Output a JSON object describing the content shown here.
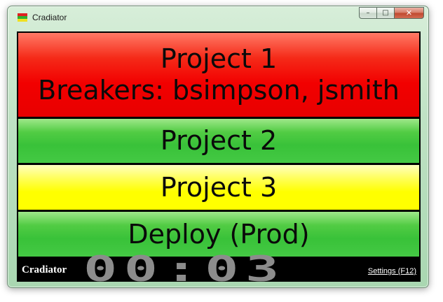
{
  "window": {
    "title": "Cradiator",
    "controls": {
      "minimize_glyph": "–",
      "maximize_glyph": "□",
      "close_glyph": "✕"
    },
    "icon_colors": [
      "#e02020",
      "#30b030",
      "#f0e020"
    ]
  },
  "projects": [
    {
      "lines": [
        "Project 1",
        "Breakers: bsimpson, jsmith"
      ],
      "status": "broken",
      "color": "#f20000"
    },
    {
      "lines": [
        "Project 2"
      ],
      "status": "success",
      "color": "#39c239"
    },
    {
      "lines": [
        "Project 3"
      ],
      "status": "building",
      "color": "#ffff00"
    },
    {
      "lines": [
        "Deploy (Prod)"
      ],
      "status": "success",
      "color": "#39c239"
    }
  ],
  "footer": {
    "brand": "Cradiator",
    "countdown": "00:03",
    "settings_link": "Settings (F12)"
  }
}
